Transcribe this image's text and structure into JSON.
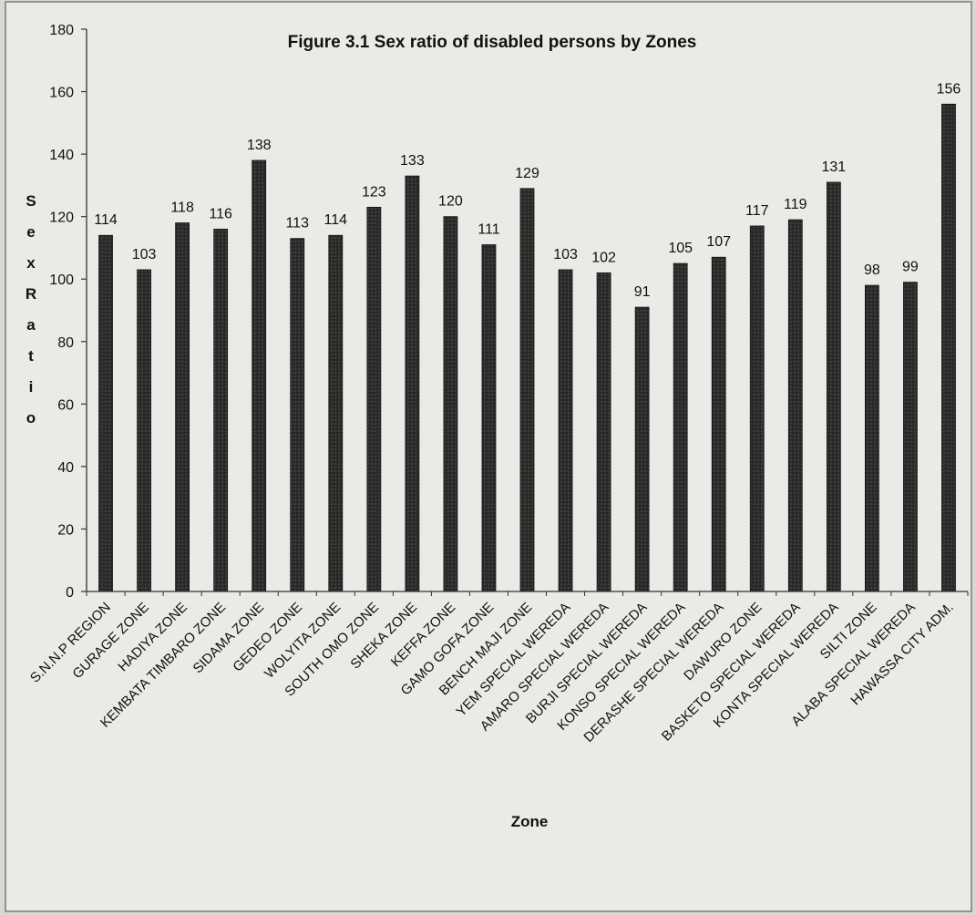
{
  "chart_data": {
    "type": "bar",
    "title": "Figure 3.1 Sex ratio of disabled persons by Zones",
    "xlabel": "Zone",
    "ylabel": "Sex Ratio",
    "ylim": [
      0,
      180
    ],
    "yticks": [
      0,
      20,
      40,
      60,
      80,
      100,
      120,
      140,
      160,
      180
    ],
    "grid": false,
    "legend": "none",
    "bar_color": "#2b2b2b",
    "categories": [
      "S.N.N.P REGION",
      "GURAGE ZONE",
      "HADIYA ZONE",
      "KEMBATA TIMBARO ZONE",
      "SIDAMA ZONE",
      "GEDEO ZONE",
      "WOLYITA ZONE",
      "SOUTH OMO ZONE",
      "SHEKA ZONE",
      "KEFFA ZONE",
      "GAMO GOFA ZONE",
      "BENCH MAJI ZONE",
      "YEM SPECIAL WEREDA",
      "AMARO SPECIAL WEREDA",
      "BURJI SPECIAL WEREDA",
      "KONSO SPECIAL WEREDA",
      "DERASHE SPECIAL WEREDA",
      "DAWURO ZONE",
      "BASKETO SPECIAL WEREDA",
      "KONTA SPECIAL WEREDA",
      "SILTI ZONE",
      "ALABA SPECIAL WEREDA",
      "HAWASSA CITY ADM."
    ],
    "values": [
      114,
      103,
      118,
      116,
      138,
      113,
      114,
      123,
      133,
      120,
      111,
      129,
      103,
      102,
      91,
      105,
      107,
      117,
      119,
      131,
      98,
      99,
      156
    ]
  }
}
